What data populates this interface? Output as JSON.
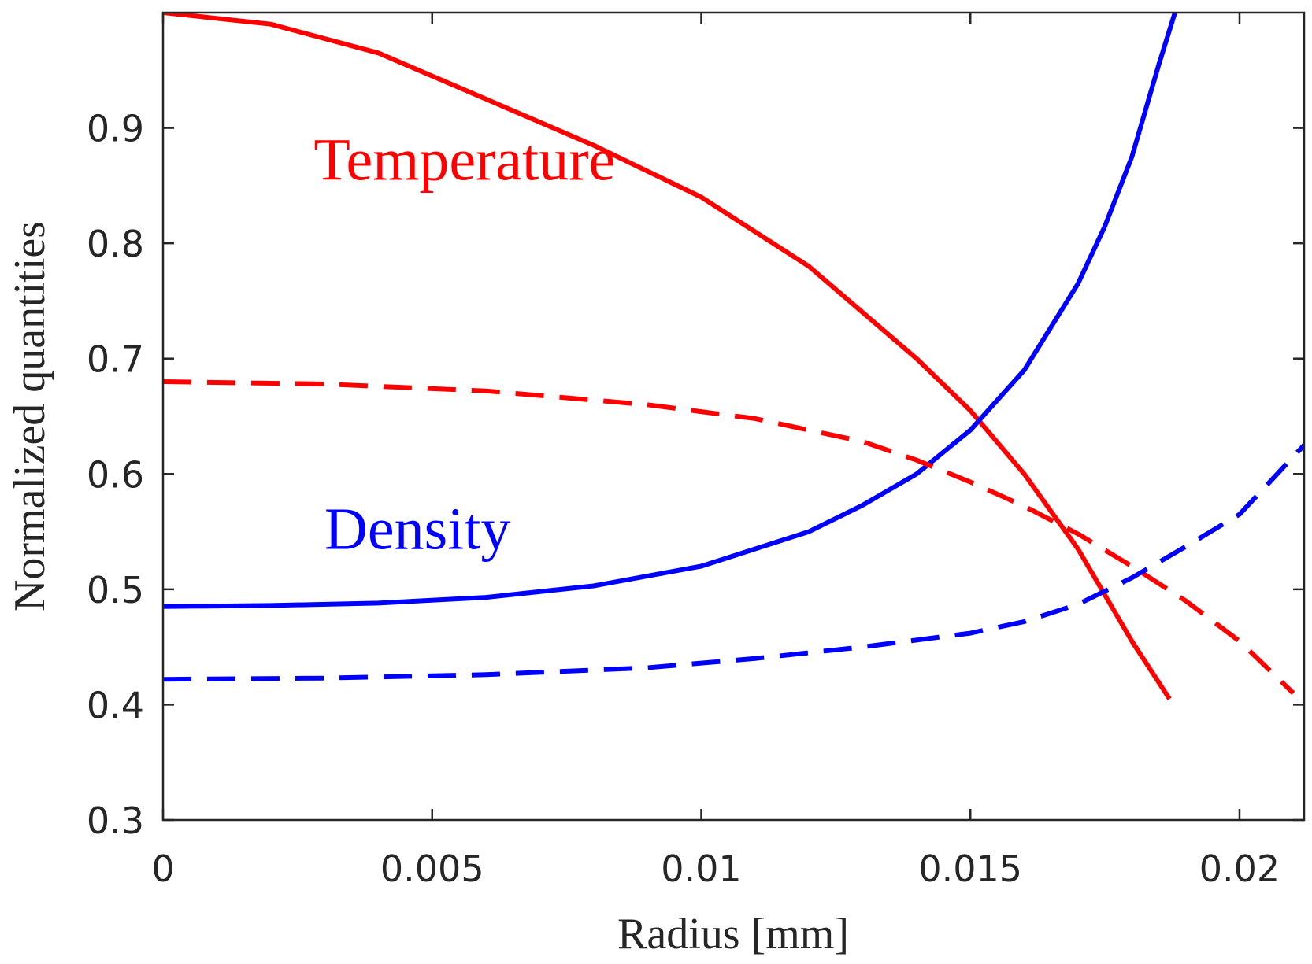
{
  "chart_data": {
    "type": "line",
    "title": "",
    "xlabel": "Radius [mm]",
    "ylabel": "Normalized quantities",
    "xlim": [
      0,
      0.0212
    ],
    "ylim": [
      0.3,
      1.0
    ],
    "xticks": [
      0,
      0.005,
      0.01,
      0.015,
      0.02
    ],
    "xtick_labels": [
      "0",
      "0.005",
      "0.01",
      "0.015",
      "0.02"
    ],
    "yticks": [
      0.3,
      0.4,
      0.5,
      0.6,
      0.7,
      0.8,
      0.9
    ],
    "ytick_labels": [
      "0.3",
      "0.4",
      "0.5",
      "0.6",
      "0.7",
      "0.8",
      "0.9"
    ],
    "grid": false,
    "colors": {
      "temperature": "#ff0000",
      "density": "#0000ff",
      "axis": "#262626"
    },
    "series": [
      {
        "name": "Temperature (solid)",
        "color": "#ff0000",
        "dash": "solid",
        "x": [
          0,
          0.002,
          0.004,
          0.006,
          0.008,
          0.01,
          0.012,
          0.014,
          0.015,
          0.016,
          0.017,
          0.018,
          0.0187
        ],
        "y": [
          1.0,
          0.99,
          0.965,
          0.925,
          0.885,
          0.84,
          0.78,
          0.7,
          0.655,
          0.6,
          0.535,
          0.455,
          0.405
        ]
      },
      {
        "name": "Density (solid)",
        "color": "#0000ff",
        "dash": "solid",
        "x": [
          0,
          0.002,
          0.004,
          0.006,
          0.008,
          0.01,
          0.012,
          0.013,
          0.014,
          0.015,
          0.016,
          0.017,
          0.0175,
          0.018,
          0.0185,
          0.0188
        ],
        "y": [
          0.485,
          0.486,
          0.488,
          0.493,
          0.503,
          0.52,
          0.55,
          0.573,
          0.6,
          0.638,
          0.69,
          0.765,
          0.815,
          0.875,
          0.955,
          1.0
        ]
      },
      {
        "name": "Temperature (dashed)",
        "color": "#ff0000",
        "dash": "dashed",
        "x": [
          0,
          0.003,
          0.006,
          0.009,
          0.011,
          0.013,
          0.014,
          0.015,
          0.016,
          0.017,
          0.018,
          0.019,
          0.02,
          0.021
        ],
        "y": [
          0.68,
          0.678,
          0.672,
          0.66,
          0.648,
          0.628,
          0.612,
          0.593,
          0.572,
          0.548,
          0.52,
          0.49,
          0.455,
          0.41
        ]
      },
      {
        "name": "Density (dashed)",
        "color": "#0000ff",
        "dash": "dashed",
        "x": [
          0,
          0.003,
          0.006,
          0.009,
          0.011,
          0.013,
          0.015,
          0.016,
          0.017,
          0.018,
          0.019,
          0.02,
          0.0212
        ],
        "y": [
          0.422,
          0.423,
          0.426,
          0.432,
          0.44,
          0.45,
          0.462,
          0.472,
          0.487,
          0.51,
          0.537,
          0.565,
          0.625
        ]
      }
    ],
    "annotations": [
      {
        "text": "Temperature",
        "x": 0.0028,
        "y": 0.855,
        "color": "#ff0000"
      },
      {
        "text": "Density",
        "x": 0.003,
        "y": 0.535,
        "color": "#0000ff"
      }
    ]
  }
}
